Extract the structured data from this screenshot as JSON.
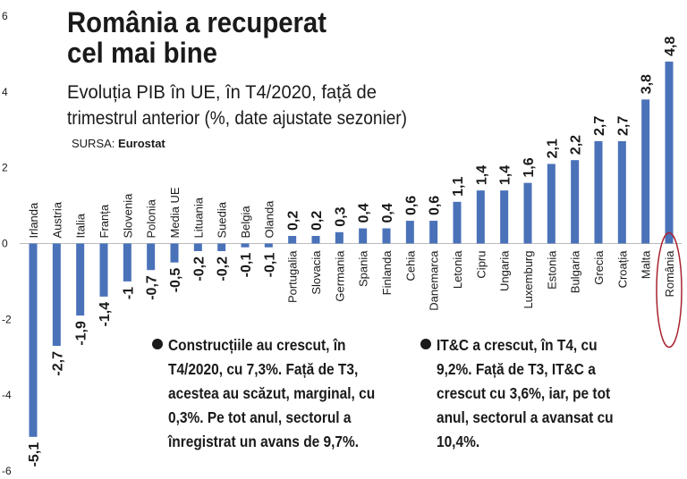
{
  "chart_data": {
    "type": "bar",
    "title_lines": [
      "România a recuperat",
      "cel mai bine"
    ],
    "subtitle_lines": [
      "Evoluția PIB în UE, în T4/2020, față de",
      "trimestrul anterior (%, date ajustate sezonier)"
    ],
    "source": {
      "label": "SURSA:",
      "value": "Eurostat"
    },
    "categories": [
      "Irlanda",
      "Austria",
      "Italia",
      "Franța",
      "Slovenia",
      "Polonia",
      "Media UE",
      "Lituania",
      "Suedia",
      "Belgia",
      "Olanda",
      "Portugalia",
      "Slovacia",
      "Germania",
      "Spania",
      "Finlanda",
      "Cehia",
      "Danemarca",
      "Letonia",
      "Cipru",
      "Ungaria",
      "Luxemburg",
      "Estonia",
      "Bulgaria",
      "Grecia",
      "Croația",
      "Malta",
      "România"
    ],
    "values": [
      -5.1,
      -2.7,
      -1.9,
      -1.4,
      -1,
      -0.7,
      -0.5,
      -0.2,
      -0.2,
      -0.1,
      -0.1,
      0.2,
      0.2,
      0.3,
      0.4,
      0.4,
      0.6,
      0.6,
      1.1,
      1.4,
      1.4,
      1.6,
      2.1,
      2.2,
      2.7,
      2.7,
      3.8,
      4.8
    ],
    "value_labels": [
      "-5,1",
      "-2,7",
      "-1,9",
      "-1,4",
      "-1",
      "-0,7",
      "-0,5",
      "-0,2",
      "-0,2",
      "-0,1",
      "-0,1",
      "0,2",
      "0,2",
      "0,3",
      "0,4",
      "0,4",
      "0,6",
      "0,6",
      "1,1",
      "1,4",
      "1,4",
      "1,6",
      "2,1",
      "2,2",
      "2,7",
      "2,7",
      "3,8",
      "4,8"
    ],
    "color": "#4a72b9",
    "ylim": [
      -6,
      6
    ],
    "yticks": [
      -6,
      -4,
      -2,
      0,
      2,
      4,
      6
    ],
    "highlight": "România",
    "highlight_color": "#a8222f",
    "notes": [
      [
        "Construcțiile au crescut, în",
        "T4/2020, cu 7,3%. Față de T3,",
        "acestea au scăzut, marginal, cu",
        "0,3%. Pe tot anul, sectorul a",
        "înregistrat un avans de 9,7%."
      ],
      [
        "IT&C a crescut, în T4, cu",
        "9,2%. Față de T3, IT&C a",
        "crescut cu 3,6%, iar, pe tot",
        "anul, sectorul a avansat cu",
        "10,4%."
      ]
    ]
  }
}
